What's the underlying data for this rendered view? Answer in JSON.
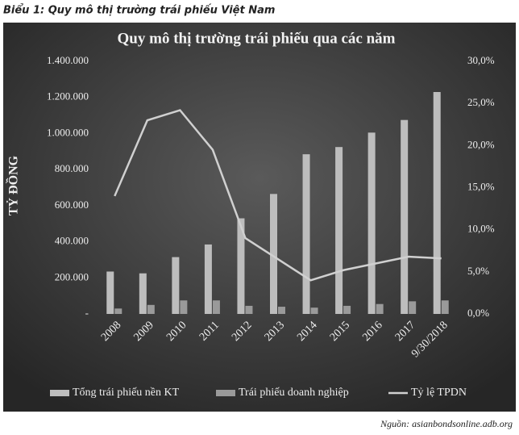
{
  "caption": "Biểu 1: Quy mô thị trường trái phiếu Việt Nam",
  "source": "Nguồn: asianbondsonline.adb.org",
  "chart_data": {
    "type": "bar_line",
    "title": "Quy mô thị trường trái phiếu qua các năm",
    "y_label": "TỶ ĐỒNG",
    "categories": [
      "2008",
      "2009",
      "2010",
      "2011",
      "2012",
      "2013",
      "2014",
      "2015",
      "2016",
      "2017",
      "9/30/2018"
    ],
    "series": [
      {
        "name": "Tổng trái phiếu nền KT",
        "color": "#bdbdbd",
        "values": [
          235000,
          225000,
          315000,
          385000,
          530000,
          665000,
          885000,
          925000,
          1005000,
          1075000,
          1230000
        ]
      },
      {
        "name": "Trái phiếu doanh nghiệp",
        "color": "#9a9a9a",
        "values": [
          30000,
          50000,
          75000,
          75000,
          45000,
          40000,
          35000,
          45000,
          55000,
          70000,
          75000
        ]
      },
      {
        "name": "Tỷ lệ TPDN",
        "color": "#d0d0d0",
        "axis": "y2",
        "values": [
          14,
          23,
          24.2,
          19.5,
          9,
          6.5,
          4,
          5.2,
          6,
          6.8,
          6.6
        ]
      }
    ],
    "ylim": [
      0,
      1400000
    ],
    "yticks": [
      {
        "value": 0,
        "label": "-"
      },
      {
        "value": 200000,
        "label": "200.000"
      },
      {
        "value": 400000,
        "label": "400.000"
      },
      {
        "value": 600000,
        "label": "600.000"
      },
      {
        "value": 800000,
        "label": "800.000"
      },
      {
        "value": 1000000,
        "label": "1.000.000"
      },
      {
        "value": 1200000,
        "label": "1.200.000"
      },
      {
        "value": 1400000,
        "label": "1.400.000"
      }
    ],
    "y2lim": [
      0,
      30
    ],
    "y2ticks": [
      {
        "value": 0,
        "label": "0,0%"
      },
      {
        "value": 5,
        "label": "5,0%"
      },
      {
        "value": 10,
        "label": "10,0%"
      },
      {
        "value": 15,
        "label": "15,0%"
      },
      {
        "value": 20,
        "label": "20,0%"
      },
      {
        "value": 25,
        "label": "25,0%"
      },
      {
        "value": 30,
        "label": "30,0%"
      }
    ]
  }
}
